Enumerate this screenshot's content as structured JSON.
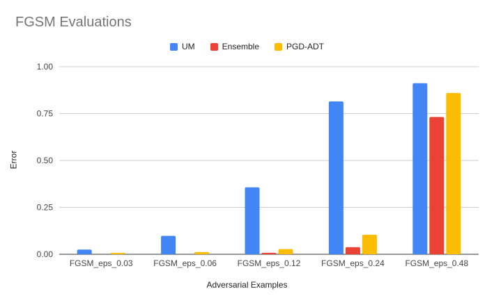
{
  "chart_data": {
    "type": "bar",
    "title": "FGSM Evaluations",
    "xlabel": "Adversarial Examples",
    "ylabel": "Error",
    "ylim": [
      0,
      1
    ],
    "yticks": [
      "0.00",
      "0.25",
      "0.50",
      "0.75",
      "1.00"
    ],
    "grid": true,
    "legend_position": "top",
    "categories": [
      "FGSM_eps_0.03",
      "FGSM_eps_0.06",
      "FGSM_eps_0.12",
      "FGSM_eps_0.24",
      "FGSM_eps_0.48"
    ],
    "series": [
      {
        "name": "UM",
        "color": "#4285f4",
        "values": [
          0.025,
          0.098,
          0.357,
          0.815,
          0.912
        ]
      },
      {
        "name": "Ensemble",
        "color": "#ea4335",
        "values": [
          0.0,
          0.0,
          0.008,
          0.038,
          0.732
        ]
      },
      {
        "name": "PGD-ADT",
        "color": "#fbbc04",
        "values": [
          0.008,
          0.012,
          0.028,
          0.104,
          0.86
        ]
      }
    ]
  }
}
